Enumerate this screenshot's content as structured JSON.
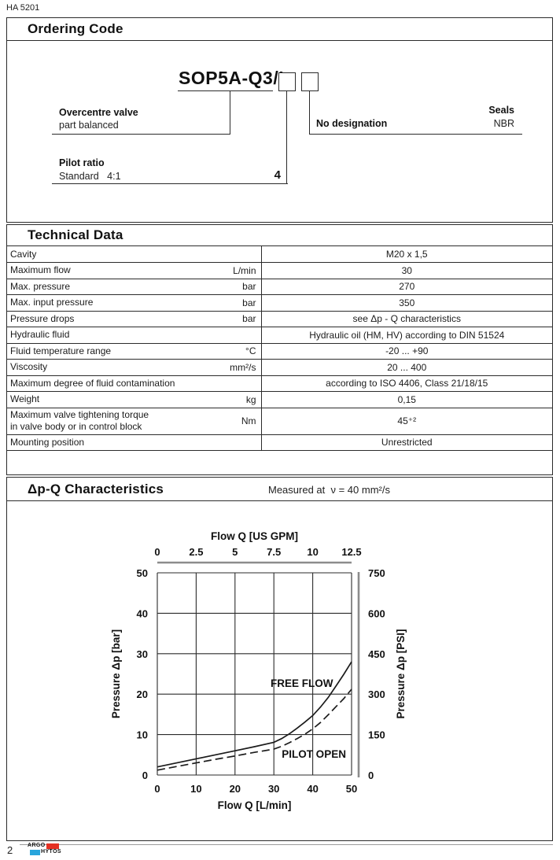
{
  "doc_number": "HA 5201",
  "page_number": "2",
  "logo": {
    "line1": "ARGO",
    "line2": "HYTOS",
    "red": "#e53123",
    "blue": "#29a5dc"
  },
  "ordering": {
    "title": "Ordering Code",
    "code": "SOP5A-Q3/I",
    "items": {
      "overcentre": {
        "title": "Overcentre valve",
        "subtitle": "part balanced"
      },
      "pilot_ratio": {
        "title": "Pilot ratio",
        "subtitle": "Standard   4:1",
        "code_value": "4"
      },
      "seals": {
        "title": "Seals",
        "label": "No designation",
        "value": "NBR"
      }
    }
  },
  "technical": {
    "title": "Technical Data",
    "rows": [
      {
        "param": "Cavity",
        "unit": "",
        "value": "M20 x 1,5"
      },
      {
        "param": "Maximum flow",
        "unit": "L/min",
        "value": "30"
      },
      {
        "param": "Max. pressure",
        "unit": "bar",
        "value": "270"
      },
      {
        "param": "Max. input pressure",
        "unit": "bar",
        "value": "350"
      },
      {
        "param": "Pressure drops",
        "unit": "bar",
        "value": "see Δp - Q characteristics"
      },
      {
        "param": "Hydraulic fluid",
        "unit": "",
        "value": "Hydraulic oil (HM, HV) according to DIN 51524"
      },
      {
        "param": "Fluid temperature range",
        "unit": "°C",
        "value": "-20 ... +90"
      },
      {
        "param": "Viscosity",
        "unit": "mm²/s",
        "value": "20 ... 400"
      },
      {
        "param": "Maximum degree of fluid contamination",
        "unit": "",
        "value": "according to ISO 4406, Class 21/18/15"
      },
      {
        "param": "Weight",
        "unit": "kg",
        "value": "0,15"
      },
      {
        "param": "Maximum valve tightening torque\nin valve body or in control block",
        "unit": "Nm",
        "value": "45⁺²",
        "tall": true
      },
      {
        "param": "Mounting position",
        "unit": "",
        "value": "Unrestricted"
      }
    ]
  },
  "chart_section": {
    "title": "Δp-Q Characteristics",
    "subtitle": "Measured at  ν = 40 mm²/s"
  },
  "chart_data": {
    "type": "line",
    "title": "Δp-Q Characteristics",
    "grid": true,
    "colors": {
      "axis_gray": "#8c8c8c",
      "grid": "#2b2b2b",
      "curve": "#1b1b1b"
    },
    "x_bottom": {
      "label": "Flow Q [L/min]",
      "range": [
        0,
        50
      ],
      "ticks": [
        0,
        10,
        20,
        30,
        40,
        50
      ]
    },
    "x_top": {
      "label": "Flow Q [US GPM]",
      "ticks": [
        "0",
        "2.5",
        "5",
        "7.5",
        "10",
        "12.5"
      ]
    },
    "y_left": {
      "label": "Pressure Δp [bar]",
      "range": [
        0,
        50
      ],
      "ticks": [
        0,
        10,
        20,
        30,
        40,
        50
      ]
    },
    "y_right": {
      "label": "Pressure Δp [PSI]",
      "ticks": [
        0,
        150,
        300,
        450,
        600,
        750
      ]
    },
    "series": [
      {
        "name": "FREE FLOW",
        "style": "solid",
        "label_at": [
          37.2,
          22.6
        ],
        "points": [
          [
            0,
            2.0
          ],
          [
            5,
            3.0
          ],
          [
            10,
            4.0
          ],
          [
            15,
            5.0
          ],
          [
            20,
            6.0
          ],
          [
            25,
            7.0
          ],
          [
            30,
            8.1
          ],
          [
            32,
            9.0
          ],
          [
            34,
            10.2
          ],
          [
            36,
            11.6
          ],
          [
            38,
            13.1
          ],
          [
            40,
            14.7
          ],
          [
            42,
            16.8
          ],
          [
            44,
            19.2
          ],
          [
            46,
            22.0
          ],
          [
            48,
            24.9
          ],
          [
            50,
            28.0
          ]
        ]
      },
      {
        "name": "PILOT OPEN",
        "style": "dashed",
        "label_at": [
          40.3,
          5.1
        ],
        "points": [
          [
            0,
            1.2
          ],
          [
            5,
            2.1
          ],
          [
            10,
            3.0
          ],
          [
            15,
            3.9
          ],
          [
            20,
            4.7
          ],
          [
            25,
            5.6
          ],
          [
            30,
            6.4
          ],
          [
            32,
            7.1
          ],
          [
            34,
            8.0
          ],
          [
            36,
            9.0
          ],
          [
            38,
            10.1
          ],
          [
            40,
            11.4
          ],
          [
            42,
            13.0
          ],
          [
            44,
            14.9
          ],
          [
            46,
            16.9
          ],
          [
            48,
            18.9
          ],
          [
            50,
            21.2
          ]
        ]
      }
    ]
  }
}
